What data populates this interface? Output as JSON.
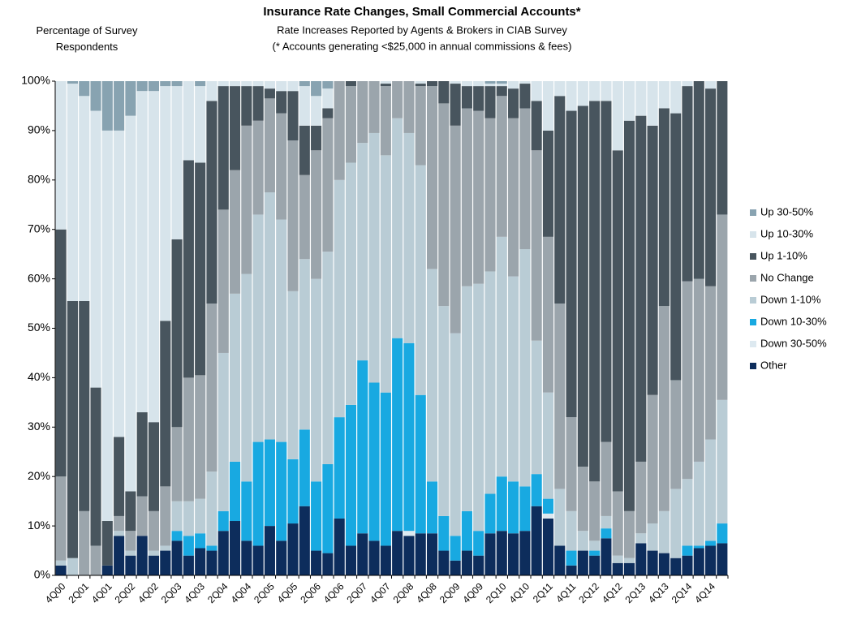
{
  "chart_data": {
    "type": "stacked-bar",
    "title": "Insurance Rate Changes, Small Commercial Accounts*",
    "subtitle": "Rate Increases Reported by Agents & Brokers in CIAB Survey",
    "note": "(* Accounts generating <$25,000 in annual commissions & fees)",
    "y_label": "Percentage of Survey Respondents",
    "categories": [
      "4Q00",
      null,
      "2Q01",
      null,
      "4Q01",
      null,
      "2Q02",
      null,
      "4Q02",
      null,
      "2Q03",
      null,
      "4Q03",
      null,
      "2Q04",
      null,
      "4Q04",
      null,
      "2Q05",
      null,
      "4Q05",
      null,
      "2Q06",
      null,
      "4Q06",
      null,
      "2Q07",
      null,
      "4Q07",
      null,
      "2Q08",
      null,
      "4Q08",
      null,
      "2Q09",
      null,
      "4Q09",
      null,
      "2Q10",
      null,
      "4Q10",
      null,
      "2Q11",
      null,
      "4Q11",
      null,
      "2Q12",
      null,
      "4Q12",
      null,
      "2Q13",
      null,
      "4Q13",
      null,
      "2Q14",
      null,
      "4Q14",
      null
    ],
    "series": [
      {
        "name": "Other",
        "color": "#0d2d5c",
        "values": [
          2,
          0,
          0,
          0,
          2,
          8,
          4,
          8,
          4,
          5,
          7,
          4,
          5.5,
          5,
          9,
          11,
          7,
          6,
          10,
          7,
          10.5,
          14,
          5,
          4.5,
          11.5,
          6,
          8.5,
          7,
          6,
          9,
          8,
          8.5,
          8.5,
          5,
          3,
          5,
          4,
          8.5,
          9,
          8.5,
          9,
          14,
          11.5,
          6,
          2,
          5,
          4,
          7.5,
          2.5,
          2.5,
          6.5,
          5,
          4.5,
          3.5,
          4,
          5.5,
          6,
          6.5
        ]
      },
      {
        "name": "Down 30-50%",
        "color": "#dde9f0",
        "values": [
          0,
          0,
          0,
          0,
          0,
          0,
          0,
          0,
          0,
          0,
          0,
          0,
          0,
          0,
          0,
          0,
          0,
          0,
          0,
          0,
          0,
          0,
          0,
          0,
          0,
          0,
          0,
          0,
          0,
          0,
          1,
          0,
          0,
          0,
          0,
          0,
          0,
          0,
          0,
          0,
          0,
          0,
          1,
          0,
          0,
          0,
          0,
          0,
          0,
          0,
          0,
          0,
          0,
          0,
          0,
          0,
          0,
          0
        ]
      },
      {
        "name": "Down 10-30%",
        "color": "#18a9e1",
        "values": [
          0,
          0,
          0,
          0,
          0,
          0,
          0,
          0,
          0,
          0,
          2,
          4,
          3,
          1,
          4,
          12,
          12,
          21,
          17.5,
          20,
          13,
          15.5,
          14,
          18,
          20.5,
          28.5,
          35,
          32,
          31,
          39,
          38,
          28,
          10.5,
          7,
          5,
          8,
          5,
          8,
          11,
          10.5,
          9,
          6.5,
          3,
          0,
          3,
          0,
          1,
          2,
          0,
          0,
          0,
          0,
          0,
          0,
          2,
          0.5,
          1,
          4
        ]
      },
      {
        "name": "Down 1-10%",
        "color": "#b9ccd5",
        "values": [
          1,
          3.5,
          0,
          0,
          0,
          1,
          1,
          0,
          1,
          1,
          6,
          7,
          7,
          15,
          32,
          34,
          42,
          46,
          50,
          45,
          34,
          34.5,
          41,
          43,
          48,
          49,
          44,
          50.5,
          48,
          44.5,
          42.5,
          46.5,
          43,
          42.5,
          41,
          45.5,
          50,
          45,
          48.5,
          41.5,
          48,
          27,
          21.5,
          11.5,
          8,
          4,
          2,
          2.5,
          1.5,
          1,
          2,
          5.5,
          8.5,
          14,
          13.5,
          17,
          20.5,
          25
        ]
      },
      {
        "name": "No Change",
        "color": "#9ba5ac",
        "values": [
          17,
          0,
          13,
          6,
          0,
          3,
          4,
          8,
          8,
          12,
          15,
          25,
          25,
          34,
          29,
          25,
          30,
          19,
          19,
          21.5,
          30.5,
          17,
          26,
          27,
          20,
          15.5,
          12.5,
          10.5,
          14,
          7.5,
          10.5,
          16,
          37,
          41,
          42,
          36,
          35,
          31,
          28.5,
          32,
          28.5,
          38.5,
          31.5,
          37.5,
          19,
          13,
          12,
          15,
          13,
          9.5,
          14.5,
          26,
          41.5,
          22,
          40,
          37,
          31,
          37.5
        ]
      },
      {
        "name": "Up 1-10%",
        "color": "#48555e",
        "values": [
          50,
          52,
          42.5,
          32,
          9,
          16,
          8,
          17,
          18,
          33.5,
          38,
          44,
          43,
          41,
          25,
          17,
          8,
          7,
          2,
          4.5,
          10,
          10,
          5,
          2,
          0,
          1,
          0,
          0,
          0.5,
          0,
          0,
          0.5,
          1,
          4.5,
          8.5,
          4.5,
          5,
          6.5,
          2,
          6,
          5,
          10,
          21.5,
          42,
          62,
          73,
          77,
          69,
          69,
          79,
          70,
          54.5,
          40,
          54,
          39.5,
          40,
          40,
          27
        ]
      },
      {
        "name": "Up 10-30%",
        "color": "#d7e4eb",
        "values": [
          30,
          44,
          41.5,
          56,
          79,
          62,
          76,
          65,
          67,
          47.5,
          31,
          16,
          15.5,
          4,
          1,
          1,
          1,
          1,
          1.5,
          2,
          2,
          8,
          6,
          4,
          0,
          0,
          0,
          0,
          0.5,
          0,
          0,
          0.5,
          0,
          0,
          0.5,
          1,
          1,
          0.5,
          0.5,
          1.5,
          0.5,
          4,
          10,
          3,
          6,
          5,
          4,
          4,
          14,
          8,
          7,
          9,
          5.5,
          6.5,
          1,
          0,
          1.5,
          0
        ]
      },
      {
        "name": "Up 30-50%",
        "color": "#88a3b1",
        "values": [
          0,
          0.5,
          3,
          6,
          10,
          10,
          7,
          2,
          2,
          1,
          1,
          0,
          1,
          0,
          0,
          0,
          0,
          0,
          0,
          0,
          0,
          1,
          3,
          1.5,
          0,
          0,
          0,
          0,
          0,
          0,
          0,
          0,
          0,
          0,
          0,
          0,
          0,
          0.5,
          0.5,
          0,
          0,
          0,
          0,
          0,
          0,
          0,
          0,
          0,
          0,
          0,
          0,
          0,
          0,
          0,
          0,
          0,
          0,
          0
        ]
      }
    ],
    "ylim": [
      0,
      100
    ],
    "yticks": [
      {
        "value": 0,
        "label": "0%"
      },
      {
        "value": 10,
        "label": "10%"
      },
      {
        "value": 20,
        "label": "20%"
      },
      {
        "value": 30,
        "label": "30%"
      },
      {
        "value": 40,
        "label": "40%"
      },
      {
        "value": 50,
        "label": "50%"
      },
      {
        "value": 60,
        "label": "60%"
      },
      {
        "value": 70,
        "label": "70%"
      },
      {
        "value": 80,
        "label": "80%"
      },
      {
        "value": 90,
        "label": "90%"
      },
      {
        "value": 100,
        "label": "100%"
      }
    ],
    "legend": "right"
  }
}
